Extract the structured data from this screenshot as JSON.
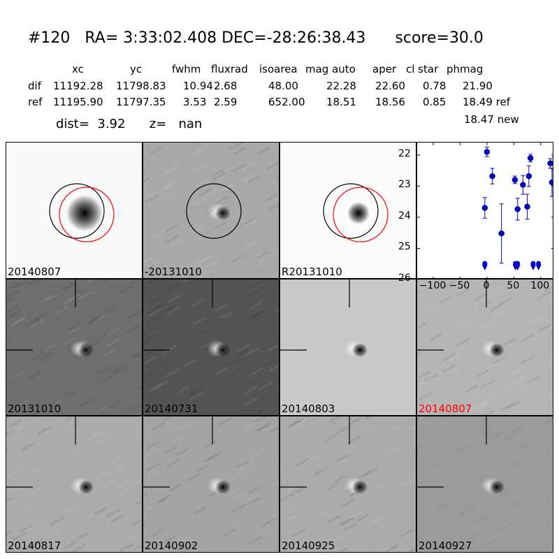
{
  "header": {
    "title": "#120   RA= 3:33:02.408 DEC=-28:26:38.43      score=30.0"
  },
  "table": {
    "columns": [
      {
        "label": "xc",
        "x": 103
      },
      {
        "label": "yc",
        "x": 186
      },
      {
        "label": "fwhm",
        "x": 246
      },
      {
        "label": "fluxrad",
        "x": 302
      },
      {
        "label": "isoarea",
        "x": 371
      },
      {
        "label": "mag auto",
        "x": 437
      },
      {
        "label": "aper",
        "x": 533
      },
      {
        "label": "cl star",
        "x": 581
      },
      {
        "label": "phmag",
        "x": 639
      }
    ],
    "rows": [
      {
        "name": "dif",
        "values": [
          "11192.28",
          "11798.83",
          "10.94",
          "2.68",
          "48.00",
          "22.28",
          "22.60",
          "0.78",
          "21.90"
        ]
      },
      {
        "name": "ref",
        "values": [
          "11195.90",
          "11797.35",
          "3.53",
          "2.59",
          "652.00",
          "18.51",
          "18.56",
          "0.85",
          "18.49 ref"
        ]
      }
    ],
    "new_mag": "18.47 new",
    "dist_line": "dist=  3.92      z=   nan"
  },
  "panels": [
    {
      "label": "20140807",
      "style": "smooth"
    },
    {
      "label": "-20131010",
      "style": "noisy-dipole"
    },
    {
      "label": "R20131010",
      "style": "smooth-small"
    },
    {
      "label": "20131010",
      "style": "dark-noisy"
    },
    {
      "label": "20140731",
      "style": "darker"
    },
    {
      "label": "20140803",
      "style": "light-dipole"
    },
    {
      "label": "20140807",
      "style": "noisy-light",
      "highlight": true
    },
    {
      "label": "20140817",
      "style": "gray-dipole"
    },
    {
      "label": "20140902",
      "style": "gray-noisy"
    },
    {
      "label": "20140925",
      "style": "gray-dipole"
    },
    {
      "label": "20140927",
      "style": "mid-gray"
    }
  ],
  "colors": {
    "marker": "#0000cc",
    "circle_ref": "#000000",
    "circle_new": "#ff0000",
    "highlight_label": "#ff0000"
  },
  "chart_data": {
    "type": "scatter",
    "xlim": [
      -130,
      125
    ],
    "ylim": [
      26,
      21.6
    ],
    "inverted_y": true,
    "xticks": [
      "−100",
      "−50",
      "0",
      "50",
      "100"
    ],
    "xtick_values": [
      -100,
      -50,
      0,
      50,
      100
    ],
    "yticks": [
      "22",
      "23",
      "24",
      "25",
      "26"
    ],
    "ytick_values": [
      22,
      23,
      24,
      25,
      26
    ],
    "points": [
      {
        "x": -4,
        "y": 23.7,
        "err": 0.33
      },
      {
        "x": 0,
        "y": 21.9,
        "err": 0.15
      },
      {
        "x": 10,
        "y": 22.68,
        "err": 0.25
      },
      {
        "x": 27,
        "y": 24.52,
        "err": 0.95
      },
      {
        "x": 52,
        "y": 22.8,
        "err": 0.12
      },
      {
        "x": 57,
        "y": 23.74,
        "err": 0.35
      },
      {
        "x": 67,
        "y": 22.96,
        "err": 0.3
      },
      {
        "x": 75,
        "y": 23.66,
        "err": 0.4
      },
      {
        "x": 78,
        "y": 22.68,
        "err": 0.33
      },
      {
        "x": 81,
        "y": 22.1,
        "err": 0.12
      },
      {
        "x": 118,
        "y": 22.27,
        "err": 0.15
      },
      {
        "x": 121,
        "y": 22.88,
        "err": 0.45
      },
      {
        "x": 125,
        "y": 22.27,
        "err": 0.2
      }
    ],
    "upper_limits": [
      {
        "x": -4,
        "y": 25.55
      },
      {
        "x": 53,
        "y": 25.55
      },
      {
        "x": 57,
        "y": 25.55
      },
      {
        "x": 86,
        "y": 25.55
      },
      {
        "x": 96,
        "y": 25.55
      }
    ]
  }
}
